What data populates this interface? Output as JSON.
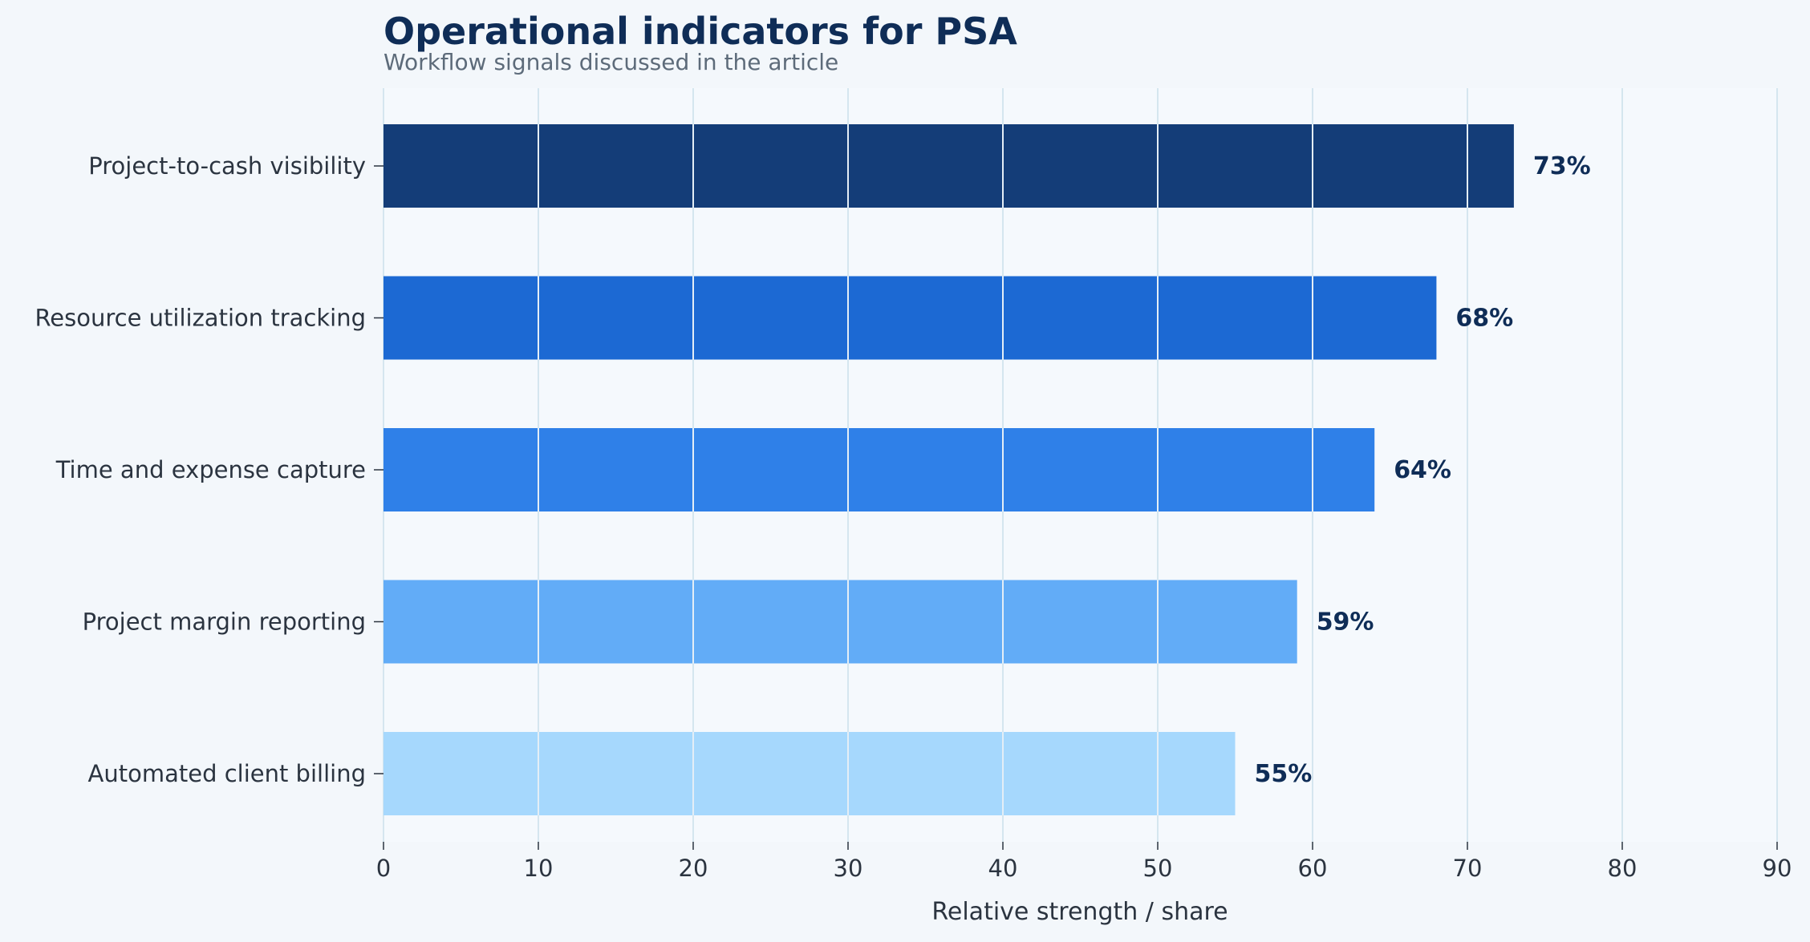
{
  "chart_data": {
    "type": "bar",
    "orientation": "horizontal",
    "title": "Operational indicators for PSA",
    "subtitle": "Workflow signals discussed in the article",
    "xlabel": "Relative strength / share",
    "ylabel": "",
    "xlim": [
      0,
      90
    ],
    "xticks": [
      0,
      10,
      20,
      30,
      40,
      50,
      60,
      70,
      80,
      90
    ],
    "grid": true,
    "legend": "none",
    "categories": [
      "Project-to-cash visibility",
      "Resource utilization tracking",
      "Time and expense capture",
      "Project margin reporting",
      "Automated client billing"
    ],
    "values": [
      73,
      68,
      64,
      59,
      55
    ],
    "value_labels": [
      "73%",
      "68%",
      "64%",
      "59%",
      "55%"
    ],
    "bar_colors": [
      "#143d78",
      "#1c69d3",
      "#2f80e8",
      "#62acf7",
      "#a6d8fd"
    ],
    "colors": {
      "background": "#f3f7fb",
      "plot_background": "#f5f9fd",
      "grid": "#d5e6ef",
      "text": "#2b3440",
      "title": "#0f2d57"
    }
  }
}
